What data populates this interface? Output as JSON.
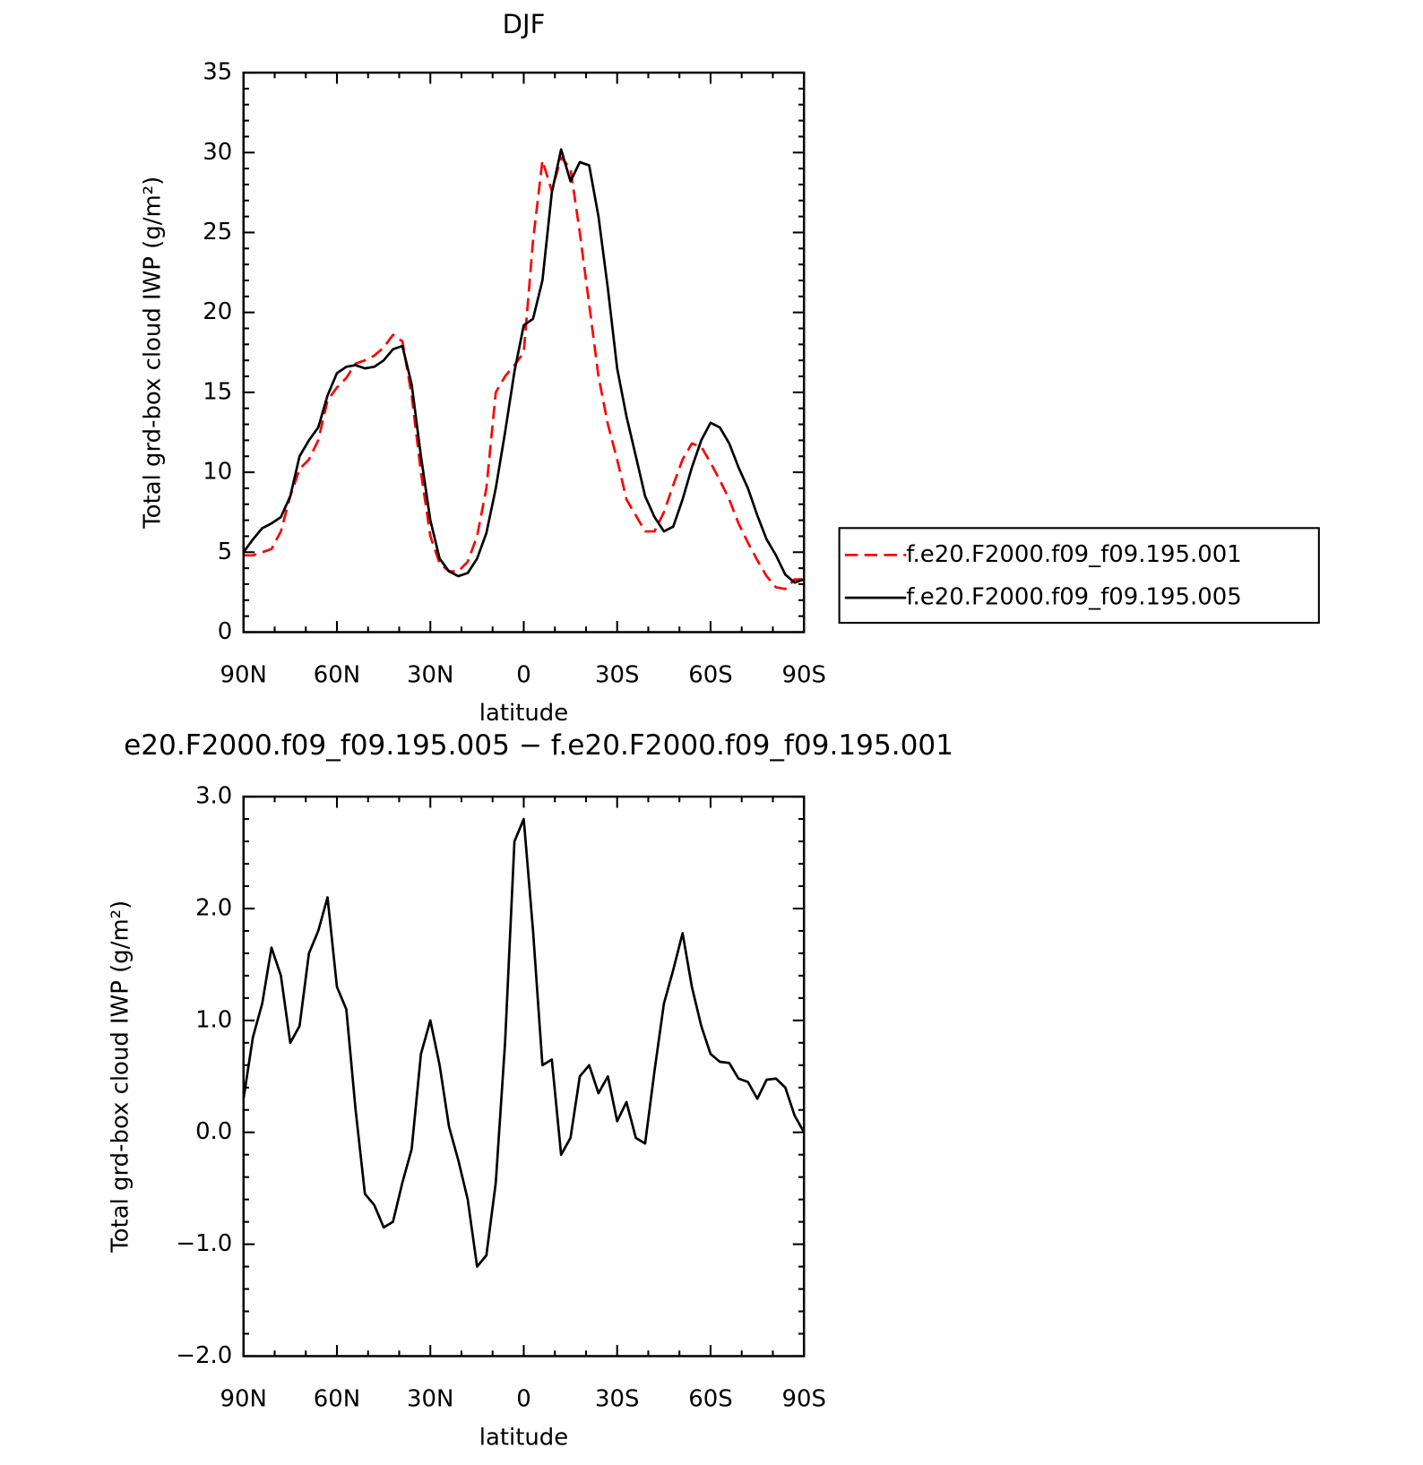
{
  "chart_data": [
    {
      "type": "line",
      "title": "DJF",
      "xlabel": "latitude",
      "ylabel": "Total grd-box cloud IWP (g/m²)",
      "x": [
        90,
        87,
        84,
        81,
        78,
        75,
        72,
        69,
        66,
        63,
        60,
        57,
        54,
        51,
        48,
        45,
        42,
        39,
        36,
        33,
        30,
        27,
        24,
        21,
        18,
        15,
        12,
        9,
        6,
        3,
        0,
        -3,
        -6,
        -9,
        -12,
        -15,
        -18,
        -21,
        -24,
        -27,
        -30,
        -33,
        -36,
        -39,
        -42,
        -45,
        -48,
        -51,
        -54,
        -57,
        -60,
        -63,
        -66,
        -69,
        -72,
        -75,
        -78,
        -81,
        -84,
        -87,
        -90
      ],
      "series": [
        {
          "name": "f.e20.F2000.f09_f09.195.001",
          "color": "#ff0000",
          "dashed": true,
          "values": [
            4.8,
            4.8,
            5.0,
            5.2,
            6.3,
            8.5,
            10.2,
            10.8,
            12.0,
            14.5,
            15.3,
            15.9,
            16.8,
            17.0,
            17.3,
            17.8,
            18.6,
            18.2,
            14.8,
            10.0,
            6.0,
            4.3,
            3.8,
            3.8,
            4.4,
            6.0,
            9.0,
            15.0,
            16.0,
            16.7,
            17.5,
            24.5,
            29.5,
            27.6,
            29.7,
            29.0,
            25.0,
            20.5,
            16.0,
            13.0,
            10.8,
            8.3,
            7.3,
            6.3,
            6.3,
            7.5,
            9.2,
            10.8,
            11.8,
            11.6,
            10.6,
            9.5,
            8.3,
            6.8,
            5.6,
            4.5,
            3.5,
            2.8,
            2.7,
            3.3,
            3.3
          ]
        },
        {
          "name": "f.e20.F2000.f09_f09.195.005",
          "color": "#000000",
          "dashed": false,
          "values": [
            5.0,
            5.8,
            6.5,
            6.8,
            7.2,
            8.5,
            11.0,
            12.0,
            12.8,
            14.8,
            16.2,
            16.6,
            16.7,
            16.5,
            16.6,
            17.0,
            17.7,
            17.9,
            15.5,
            11.0,
            7.0,
            4.6,
            3.8,
            3.5,
            3.7,
            4.6,
            6.2,
            9.0,
            12.5,
            16.3,
            19.2,
            19.6,
            22.0,
            27.5,
            30.2,
            28.2,
            29.4,
            29.2,
            26.0,
            21.5,
            16.5,
            13.5,
            11.0,
            8.5,
            7.2,
            6.3,
            6.6,
            8.3,
            10.3,
            12.0,
            13.1,
            12.8,
            11.8,
            10.3,
            9.0,
            7.3,
            5.8,
            4.8,
            3.6,
            3.1,
            3.3
          ]
        }
      ],
      "xlim": [
        90,
        -90
      ],
      "xticks": [
        {
          "value": 90,
          "label": "90N"
        },
        {
          "value": 60,
          "label": "60N"
        },
        {
          "value": 30,
          "label": "30N"
        },
        0,
        {
          "value": -30,
          "label": "30S"
        },
        {
          "value": -60,
          "label": "60S"
        },
        {
          "value": -90,
          "label": "90S"
        }
      ],
      "ylim": [
        0,
        35
      ],
      "yticks": [
        0,
        5,
        10,
        15,
        20,
        25,
        30,
        35
      ],
      "legend": "right"
    },
    {
      "type": "line",
      "title": "e20.F2000.f09_f09.195.005 − f.e20.F2000.f09_f09.195.001",
      "xlabel": "latitude",
      "ylabel": "Total grd-box cloud IWP (g/m²)",
      "x": [
        90,
        87,
        84,
        81,
        78,
        75,
        72,
        69,
        66,
        63,
        60,
        57,
        54,
        51,
        48,
        45,
        42,
        39,
        36,
        33,
        30,
        27,
        24,
        21,
        18,
        15,
        12,
        9,
        6,
        3,
        0,
        -3,
        -6,
        -9,
        -12,
        -15,
        -18,
        -21,
        -24,
        -27,
        -30,
        -33,
        -36,
        -39,
        -42,
        -45,
        -48,
        -51,
        -54,
        -57,
        -60,
        -63,
        -66,
        -69,
        -72,
        -75,
        -78,
        -81,
        -84,
        -87,
        -90
      ],
      "values": [
        0.3,
        0.85,
        1.15,
        1.65,
        1.4,
        0.8,
        0.95,
        1.6,
        1.8,
        2.1,
        1.3,
        1.1,
        0.2,
        -0.55,
        -0.65,
        -0.85,
        -0.8,
        -0.45,
        -0.15,
        0.7,
        1.0,
        0.6,
        0.05,
        -0.25,
        -0.6,
        -1.2,
        -1.1,
        -0.45,
        0.8,
        2.6,
        2.8,
        1.8,
        0.6,
        0.65,
        -0.2,
        -0.05,
        0.5,
        0.6,
        0.35,
        0.5,
        0.1,
        0.27,
        -0.05,
        -0.1,
        0.55,
        1.15,
        1.45,
        1.78,
        1.3,
        0.95,
        0.7,
        0.63,
        0.62,
        0.48,
        0.45,
        0.3,
        0.47,
        0.48,
        0.4,
        0.15,
        0.0
      ],
      "color": "#000000",
      "xlim": [
        90,
        -90
      ],
      "xticks": [
        {
          "value": 90,
          "label": "90N"
        },
        {
          "value": 60,
          "label": "60N"
        },
        {
          "value": 30,
          "label": "30N"
        },
        0,
        {
          "value": -30,
          "label": "30S"
        },
        {
          "value": -60,
          "label": "60S"
        },
        {
          "value": -90,
          "label": "90S"
        }
      ],
      "ylim": [
        -2,
        3
      ],
      "yticks": [
        {
          "value": -2,
          "label": "−2.0"
        },
        {
          "value": -1,
          "label": "−1.0"
        },
        {
          "value": 0,
          "label": "0.0"
        },
        {
          "value": 1,
          "label": "1.0"
        },
        {
          "value": 2,
          "label": "2.0"
        },
        {
          "value": 3,
          "label": "3.0"
        }
      ]
    }
  ]
}
